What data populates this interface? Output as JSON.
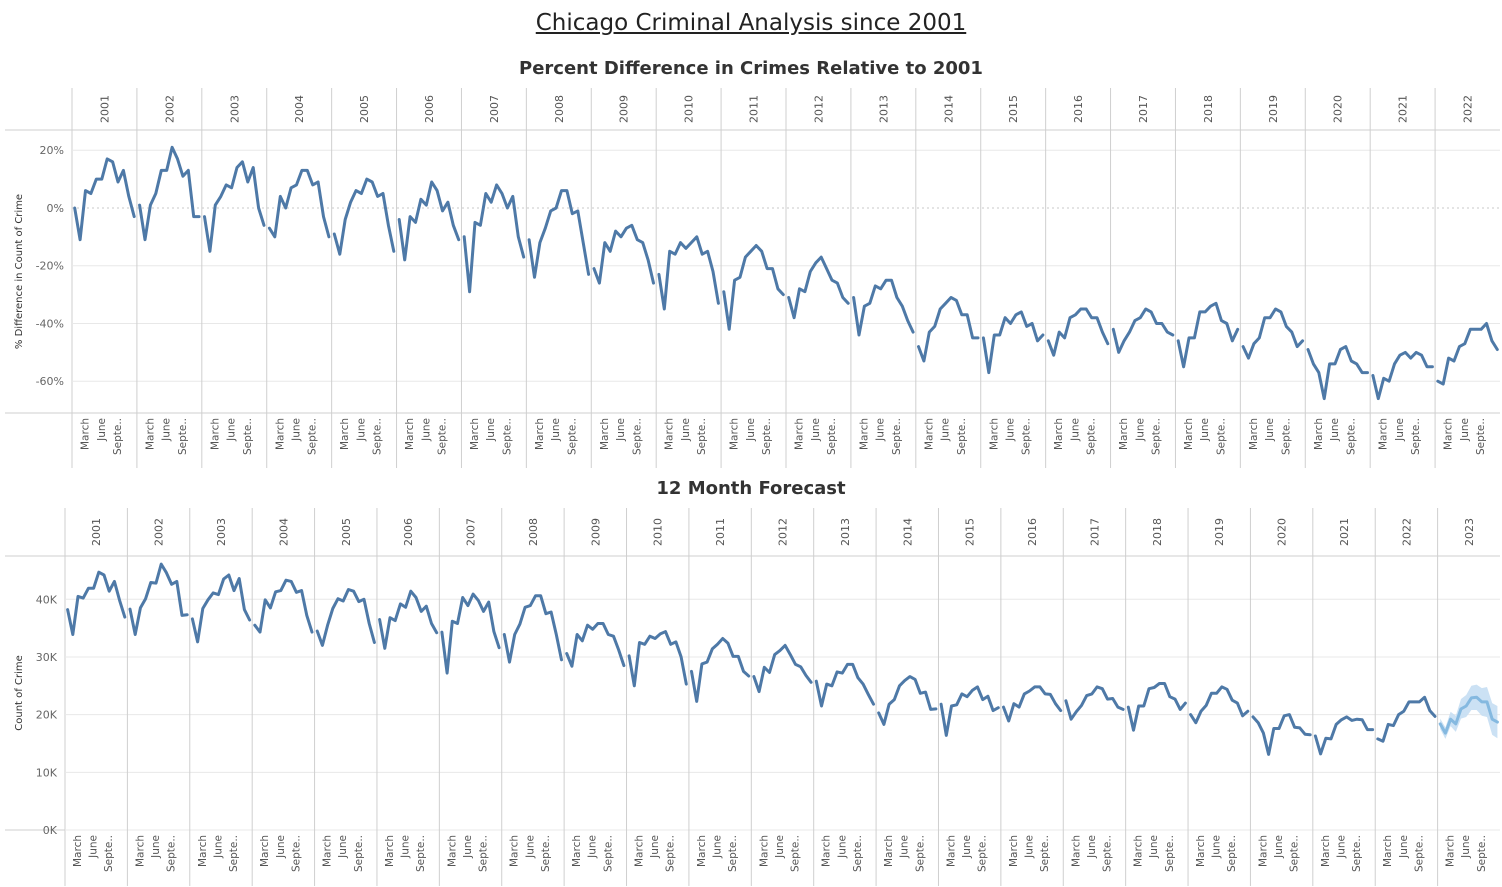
{
  "dashboard": {
    "title": "Chicago Criminal Analysis since 2001"
  },
  "colors": {
    "line": "#4e79a7",
    "forecast": "#85b9e0",
    "forecast_band": "#c5def3",
    "grid": "#e8e8e8",
    "divider": "#cfcfcf"
  },
  "chart_data": [
    {
      "type": "line",
      "title": "Percent Difference in Crimes Relative to 2001",
      "xlabel": "",
      "ylabel": "% Difference in Count of Crime",
      "yticks": [
        "20%",
        "0%",
        "-20%",
        "-40%",
        "-60%"
      ],
      "ylim": [
        -71,
        27
      ],
      "years": [
        "2001",
        "2002",
        "2003",
        "2004",
        "2005",
        "2006",
        "2007",
        "2008",
        "2009",
        "2010",
        "2011",
        "2012",
        "2013",
        "2014",
        "2015",
        "2016",
        "2017",
        "2018",
        "2019",
        "2020",
        "2021",
        "2022"
      ],
      "month_tick_labels": [
        "March",
        "June",
        "Septe.."
      ],
      "series": [
        {
          "values_by_year": [
            [
              0,
              -11,
              6,
              5,
              10,
              10,
              17,
              16,
              9,
              13,
              4,
              -3
            ],
            [
              1,
              -11,
              1,
              5,
              13,
              13,
              21,
              17,
              11,
              13,
              -3,
              -3
            ],
            [
              -3,
              -15,
              1,
              4,
              8,
              7,
              14,
              16,
              9,
              14,
              0,
              -6
            ],
            [
              -7,
              -10,
              4,
              0,
              7,
              8,
              13,
              13,
              8,
              9,
              -3,
              -10
            ],
            [
              -9,
              -16,
              -4,
              2,
              6,
              5,
              10,
              9,
              4,
              5,
              -6,
              -15
            ],
            [
              -4,
              -18,
              -3,
              -5,
              3,
              1,
              9,
              6,
              -1,
              2,
              -6,
              -11
            ],
            [
              -10,
              -29,
              -5,
              -6,
              5,
              2,
              8,
              5,
              0,
              4,
              -10,
              -17
            ],
            [
              -11,
              -24,
              -12,
              -7,
              -1,
              0,
              6,
              6,
              -2,
              -1,
              -12,
              -23
            ],
            [
              -21,
              -26,
              -12,
              -15,
              -8,
              -10,
              -7,
              -6,
              -11,
              -12,
              -18,
              -26
            ],
            [
              -23,
              -35,
              -15,
              -16,
              -12,
              -14,
              -12,
              -10,
              -16,
              -15,
              -22,
              -33
            ],
            [
              -29,
              -42,
              -25,
              -24,
              -17,
              -15,
              -13,
              -15,
              -21,
              -21,
              -28,
              -30
            ],
            [
              -31,
              -38,
              -28,
              -29,
              -22,
              -19,
              -17,
              -21,
              -25,
              -26,
              -31,
              -33
            ],
            [
              -31,
              -44,
              -34,
              -33,
              -27,
              -28,
              -25,
              -25,
              -31,
              -34,
              -39,
              -43
            ],
            [
              -48,
              -53,
              -43,
              -41,
              -35,
              -33,
              -31,
              -32,
              -37,
              -37,
              -45,
              -45
            ],
            [
              -45,
              -57,
              -44,
              -44,
              -38,
              -40,
              -37,
              -36,
              -41,
              -40,
              -46,
              -44
            ],
            [
              -46,
              -51,
              -43,
              -45,
              -38,
              -37,
              -35,
              -35,
              -38,
              -38,
              -43,
              -47
            ],
            [
              -42,
              -50,
              -46,
              -43,
              -39,
              -38,
              -35,
              -36,
              -40,
              -40,
              -43,
              -44
            ],
            [
              -46,
              -55,
              -45,
              -45,
              -36,
              -36,
              -34,
              -33,
              -39,
              -40,
              -46,
              -42
            ],
            [
              -48,
              -52,
              -47,
              -45,
              -38,
              -38,
              -35,
              -36,
              -41,
              -43,
              -48,
              -46
            ],
            [
              -49,
              -54,
              -57,
              -66,
              -54,
              -54,
              -49,
              -48,
              -53,
              -54,
              -57,
              -57
            ],
            [
              -58,
              -66,
              -59,
              -60,
              -54,
              -51,
              -50,
              -52,
              -50,
              -51,
              -55,
              -55
            ],
            [
              -60,
              -61,
              -52,
              -53,
              -48,
              -47,
              -42,
              -42,
              -42,
              -40,
              -46,
              -49
            ]
          ]
        }
      ]
    },
    {
      "type": "line",
      "title": "12 Month Forecast",
      "xlabel": "",
      "ylabel": "Count of Crime",
      "yticks": [
        "40K",
        "30K",
        "20K",
        "10K",
        "0K"
      ],
      "ylim": [
        0,
        47500
      ],
      "years": [
        "2001",
        "2002",
        "2003",
        "2004",
        "2005",
        "2006",
        "2007",
        "2008",
        "2009",
        "2010",
        "2011",
        "2012",
        "2013",
        "2014",
        "2015",
        "2016",
        "2017",
        "2018",
        "2019",
        "2020",
        "2021",
        "2022",
        "2023"
      ],
      "month_tick_labels": [
        "March",
        "June",
        "Septe.."
      ],
      "series": [
        {
          "name": "",
          "values_by_year": [
            [
              38200,
              33900,
              40500,
              40200,
              41900,
              41900,
              44700,
              44200,
              41400,
              43100,
              39800,
              36900
            ],
            [
              38300,
              33900,
              38500,
              40100,
              42900,
              42800,
              46100,
              44600,
              42600,
              43100,
              37200,
              37300
            ],
            [
              36600,
              32600,
              38400,
              39900,
              41100,
              40800,
              43500,
              44200,
              41500,
              43600,
              38200,
              36400
            ],
            [
              35500,
              34300,
              39900,
              38500,
              41300,
              41500,
              43300,
              43100,
              41200,
              41500,
              37200,
              34300
            ],
            [
              34500,
              32000,
              35500,
              38400,
              40100,
              39700,
              41700,
              41400,
              39600,
              40000,
              35800,
              32500
            ],
            [
              36500,
              31500,
              36800,
              36300,
              39200,
              38600,
              41400,
              40300,
              37900,
              38800,
              35800,
              34200
            ],
            [
              34300,
              27200,
              36200,
              35800,
              40300,
              38900,
              40900,
              39800,
              37900,
              39500,
              34400,
              31600
            ],
            [
              33900,
              29100,
              33900,
              35700,
              38600,
              38900,
              40600,
              40600,
              37500,
              37800,
              33900,
              29500
            ],
            [
              30600,
              28400,
              33900,
              32800,
              35500,
              34800,
              35800,
              35800,
              33900,
              33600,
              31200,
              28500
            ],
            [
              30200,
              25000,
              32500,
              32200,
              33600,
              33200,
              34000,
              34400,
              32200,
              32600,
              30000,
              25300
            ],
            [
              27500,
              22300,
              28800,
              29100,
              31400,
              32200,
              33200,
              32400,
              30100,
              30100,
              27500,
              26700
            ],
            [
              26600,
              24000,
              28200,
              27300,
              30400,
              31100,
              32000,
              30400,
              28700,
              28300,
              26800,
              25600
            ],
            [
              25800,
              21500,
              25300,
              25000,
              27400,
              27200,
              28700,
              28700,
              26400,
              25300,
              23500,
              21800
            ],
            [
              20300,
              18300,
              21800,
              22600,
              25000,
              25900,
              26600,
              26100,
              23700,
              23900,
              20900,
              21000
            ],
            [
              21800,
              16400,
              21500,
              21700,
              23600,
              23100,
              24200,
              24800,
              22600,
              23200,
              20700,
              21200
            ],
            [
              21300,
              18900,
              21900,
              21300,
              23600,
              24100,
              24800,
              24800,
              23600,
              23500,
              21900,
              20700
            ],
            [
              22400,
              19200,
              20500,
              21600,
              23300,
              23600,
              24800,
              24500,
              22700,
              22800,
              21300,
              20900
            ],
            [
              21300,
              17300,
              21500,
              21500,
              24500,
              24700,
              25400,
              25400,
              23100,
              22700,
              20900,
              22000
            ],
            [
              20000,
              18600,
              20600,
              21600,
              23700,
              23700,
              24800,
              24400,
              22500,
              22000,
              19800,
              20600
            ],
            [
              19600,
              18600,
              16800,
              13100,
              17600,
              17600,
              19800,
              20000,
              17800,
              17700,
              16600,
              16500
            ],
            [
              16300,
              13200,
              15900,
              15800,
              18300,
              19100,
              19600,
              19000,
              19200,
              19100,
              17400,
              17400
            ],
            [
              15800,
              15400,
              18300,
              18100,
              20000,
              20600,
              22200,
              22200,
              22200,
              23000,
              20700,
              19700
            ],
            [
              18400,
              16800,
              19200,
              18400,
              21000,
              21500,
              22900,
              23000,
              22200,
              22200,
              19200,
              18700
            ]
          ],
          "forecast_from_year": "2023",
          "forecast_band_by_month": [
            [
              17500,
              19300
            ],
            [
              15800,
              17800
            ],
            [
              18000,
              20500
            ],
            [
              17000,
              19800
            ],
            [
              19300,
              22700
            ],
            [
              19600,
              23400
            ],
            [
              20800,
              25000
            ],
            [
              20800,
              25200
            ],
            [
              19800,
              24600
            ],
            [
              19600,
              24800
            ],
            [
              16500,
              22000
            ],
            [
              15900,
              21500
            ]
          ]
        }
      ]
    }
  ]
}
